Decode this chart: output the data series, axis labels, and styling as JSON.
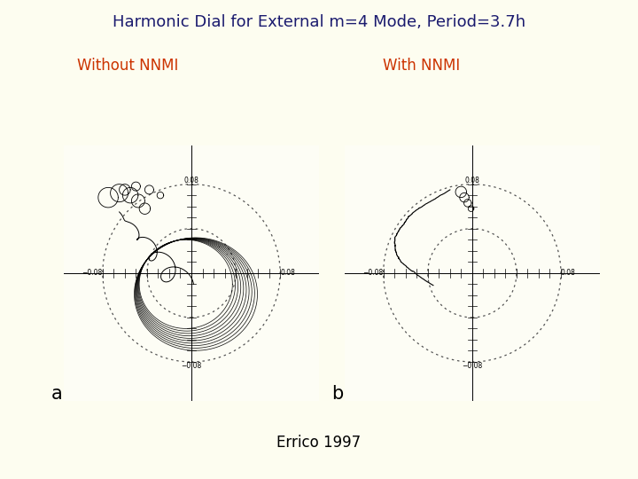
{
  "title": "Harmonic Dial for External m=4 Mode, Period=3.7h",
  "title_color": "#1a1a6e",
  "label_a": "Without NNMI",
  "label_b": "With NNMI",
  "label_color": "#cc3300",
  "label_fontsize": 12,
  "title_fontsize": 13,
  "footer": "Errico 1997",
  "footer_fontsize": 12,
  "background_color": "#fdfdf0",
  "panel_bg": "#fdfdf5",
  "axis_range": 0.115,
  "circle_radii": [
    0.04,
    0.08
  ],
  "panel_a_label": "a",
  "panel_b_label": "b"
}
